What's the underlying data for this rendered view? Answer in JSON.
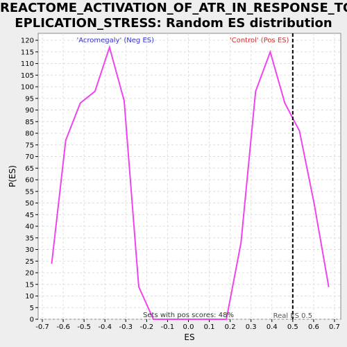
{
  "chart_data": {
    "type": "line",
    "title_lines": [
      "REACTOME_ACTIVATION_OF_ATR_IN_RESPONSE_TO_R",
      "EPLICATION_STRESS: Random ES distribution"
    ],
    "xlabel": "ES",
    "ylabel": "P(ES)",
    "xlim": [
      -0.72,
      0.73
    ],
    "ylim": [
      0,
      123
    ],
    "xticks": [
      "-0.7",
      "-0.6",
      "-0.5",
      "-0.4",
      "-0.3",
      "-0.2",
      "-0.1",
      "0.0",
      "0.1",
      "0.2",
      "0.3",
      "0.4",
      "0.5",
      "0.6",
      "0.7"
    ],
    "yticks": [
      "0",
      "5",
      "10",
      "15",
      "20",
      "25",
      "30",
      "35",
      "40",
      "45",
      "50",
      "55",
      "60",
      "65",
      "70",
      "75",
      "80",
      "85",
      "90",
      "95",
      "100",
      "105",
      "110",
      "115",
      "120"
    ],
    "grid": true,
    "series": [
      {
        "color": "#ee44ee",
        "x": [
          -0.655,
          -0.588,
          -0.518,
          -0.448,
          -0.378,
          -0.308,
          -0.238,
          -0.168,
          -0.098,
          -0.028,
          0.042,
          0.112,
          0.182,
          0.252,
          0.322,
          0.392,
          0.462,
          0.532,
          0.602,
          0.672
        ],
        "y": [
          24,
          77,
          93,
          98,
          117,
          94,
          14,
          0,
          0,
          0,
          0,
          0,
          0,
          33,
          98,
          115,
          93,
          81,
          50,
          14
        ]
      }
    ],
    "real_es": {
      "x": 0.5,
      "label": "Real ES 0.5"
    },
    "neg_label": {
      "text": "'Acromegaly' (Neg ES)",
      "color": "#3333cc"
    },
    "pos_label": {
      "text": "'Control' (Pos ES)",
      "color": "#cc3333"
    },
    "pos_fraction_label": "Sets with pos scores: 48%"
  }
}
